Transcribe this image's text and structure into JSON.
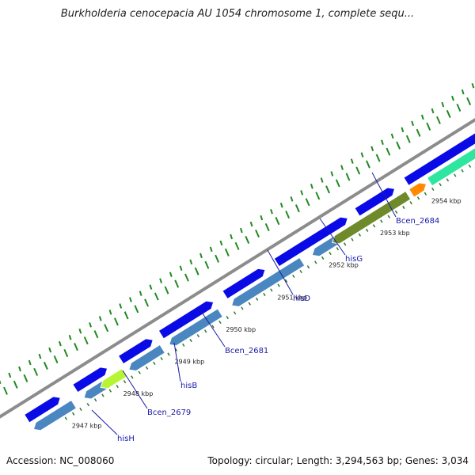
{
  "title": "Burkholderia cenocepacia AU 1054 chromosome 1, complete sequ...",
  "footer": {
    "accession": "Accession: NC_008060",
    "stats": "Topology: circular; Length: 3,294,563 bp; Genes: 3,034"
  },
  "colors": {
    "backbone": "#8c8c8c",
    "forward_gene": "#0a0ae6",
    "reverse_gene": "#4a86c0",
    "gc_dots": "#1f8a1f",
    "label_text": "#1a1aa8",
    "highlight_lime": "#b6f531",
    "highlight_olive": "#6f8a2a",
    "highlight_orange": "#ff8a00",
    "highlight_aqua": "#2ee6a0"
  },
  "scale_ticks": [
    "2947 kbp",
    "2948 kbp",
    "2949 kbp",
    "2950 kbp",
    "2951 kbp",
    "2952 kbp",
    "2953 kbp",
    "2954 kbp"
  ],
  "gene_labels": [
    "hisH",
    "Bcen_2679",
    "hisB",
    "Bcen_2681",
    "hisD",
    "hisG",
    "Bcen_2684"
  ]
}
